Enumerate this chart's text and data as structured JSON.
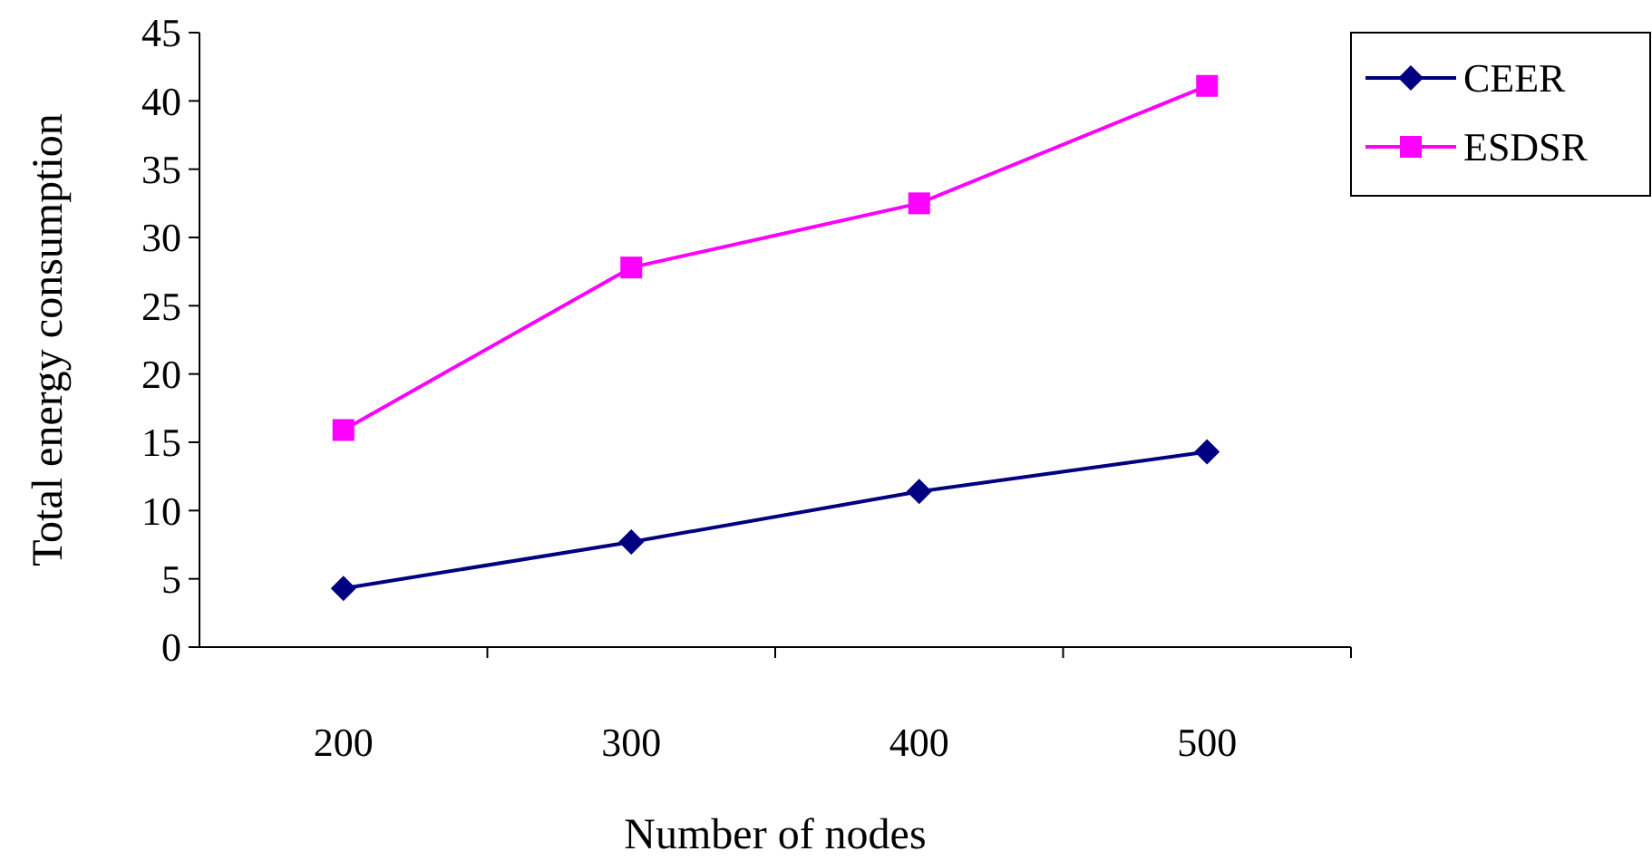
{
  "chart_data": {
    "type": "line",
    "xlabel": "Number of nodes",
    "ylabel": "Total energy consumption",
    "categories": [
      "200",
      "300",
      "400",
      "500"
    ],
    "series": [
      {
        "name": "CEER",
        "color": "#000080",
        "values": [
          4.3,
          7.7,
          11.4,
          14.3
        ],
        "marker": "diamond"
      },
      {
        "name": "ESDSR",
        "color": "#ff00ff",
        "values": [
          15.9,
          27.8,
          32.5,
          41.1
        ],
        "marker": "square"
      }
    ],
    "ylim": [
      0,
      45
    ],
    "yticks": [
      0,
      5,
      10,
      15,
      20,
      25,
      30,
      35,
      40,
      45
    ],
    "grid": false,
    "legend": "right",
    "line_style": "solid"
  }
}
